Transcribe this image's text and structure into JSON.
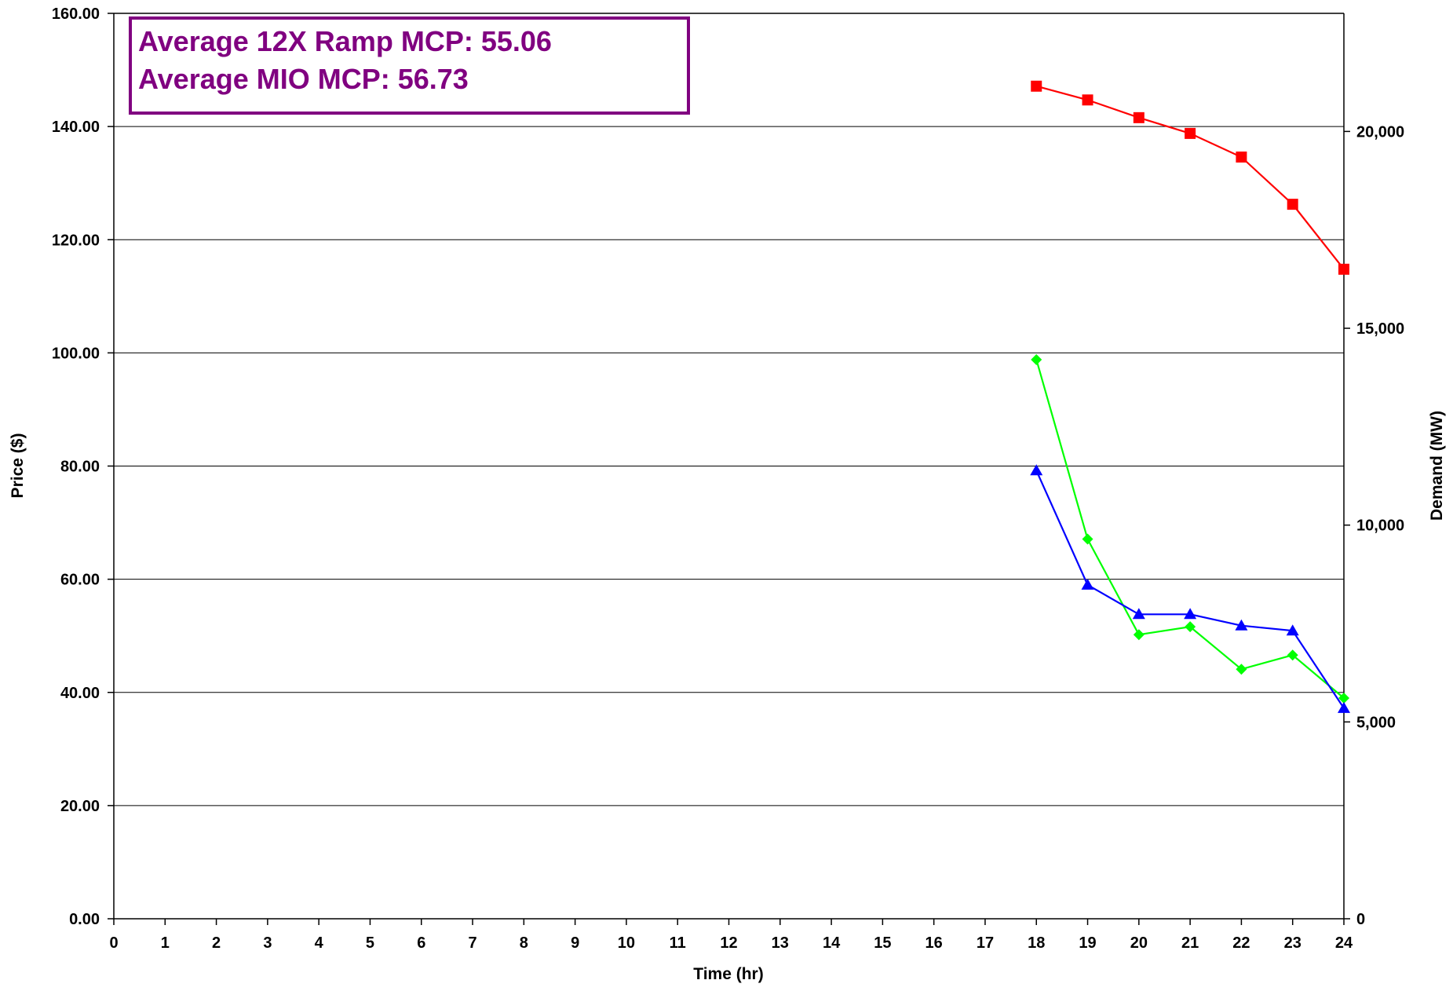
{
  "chart_data": {
    "type": "line",
    "title": "",
    "xlabel": "Time (hr)",
    "ylabel": "Price ($)",
    "y2label": "Demand (MW)",
    "xlim": [
      0,
      24
    ],
    "ylim": [
      0,
      160
    ],
    "y2lim": [
      0,
      23000
    ],
    "x_ticks": [
      "0",
      "1",
      "2",
      "3",
      "4",
      "5",
      "6",
      "7",
      "8",
      "9",
      "10",
      "11",
      "12",
      "13",
      "14",
      "15",
      "16",
      "17",
      "18",
      "19",
      "20",
      "21",
      "22",
      "23",
      "24"
    ],
    "y_ticks": [
      "0.00",
      "20.00",
      "40.00",
      "60.00",
      "80.00",
      "100.00",
      "120.00",
      "140.00",
      "160.00"
    ],
    "y2_ticks": [
      "0",
      "5,000",
      "10,000",
      "15,000",
      "20,000"
    ],
    "grid": "horizontal",
    "annotation": {
      "lines": [
        "Average 12X Ramp MCP: 55.06",
        "Average MIO MCP: 56.73"
      ],
      "color": "#800080",
      "placement": "top-left"
    },
    "series": [
      {
        "axis": "right",
        "color": "#ff0000",
        "marker": "square",
        "x": [
          18,
          19,
          20,
          21,
          22,
          23,
          24
        ],
        "values": [
          21150,
          20800,
          20350,
          19950,
          19350,
          18150,
          16500
        ]
      },
      {
        "axis": "left",
        "color": "#00ff00",
        "marker": "diamond",
        "x": [
          18,
          19,
          20,
          21,
          22,
          23,
          24
        ],
        "values": [
          98.8,
          67.1,
          50.2,
          51.6,
          44.1,
          46.6,
          39.0
        ]
      },
      {
        "axis": "left",
        "color": "#0000ff",
        "marker": "triangle",
        "x": [
          18,
          19,
          20,
          21,
          22,
          23,
          24
        ],
        "values": [
          79.2,
          59.0,
          53.8,
          53.8,
          51.8,
          50.9,
          37.2
        ]
      }
    ]
  }
}
